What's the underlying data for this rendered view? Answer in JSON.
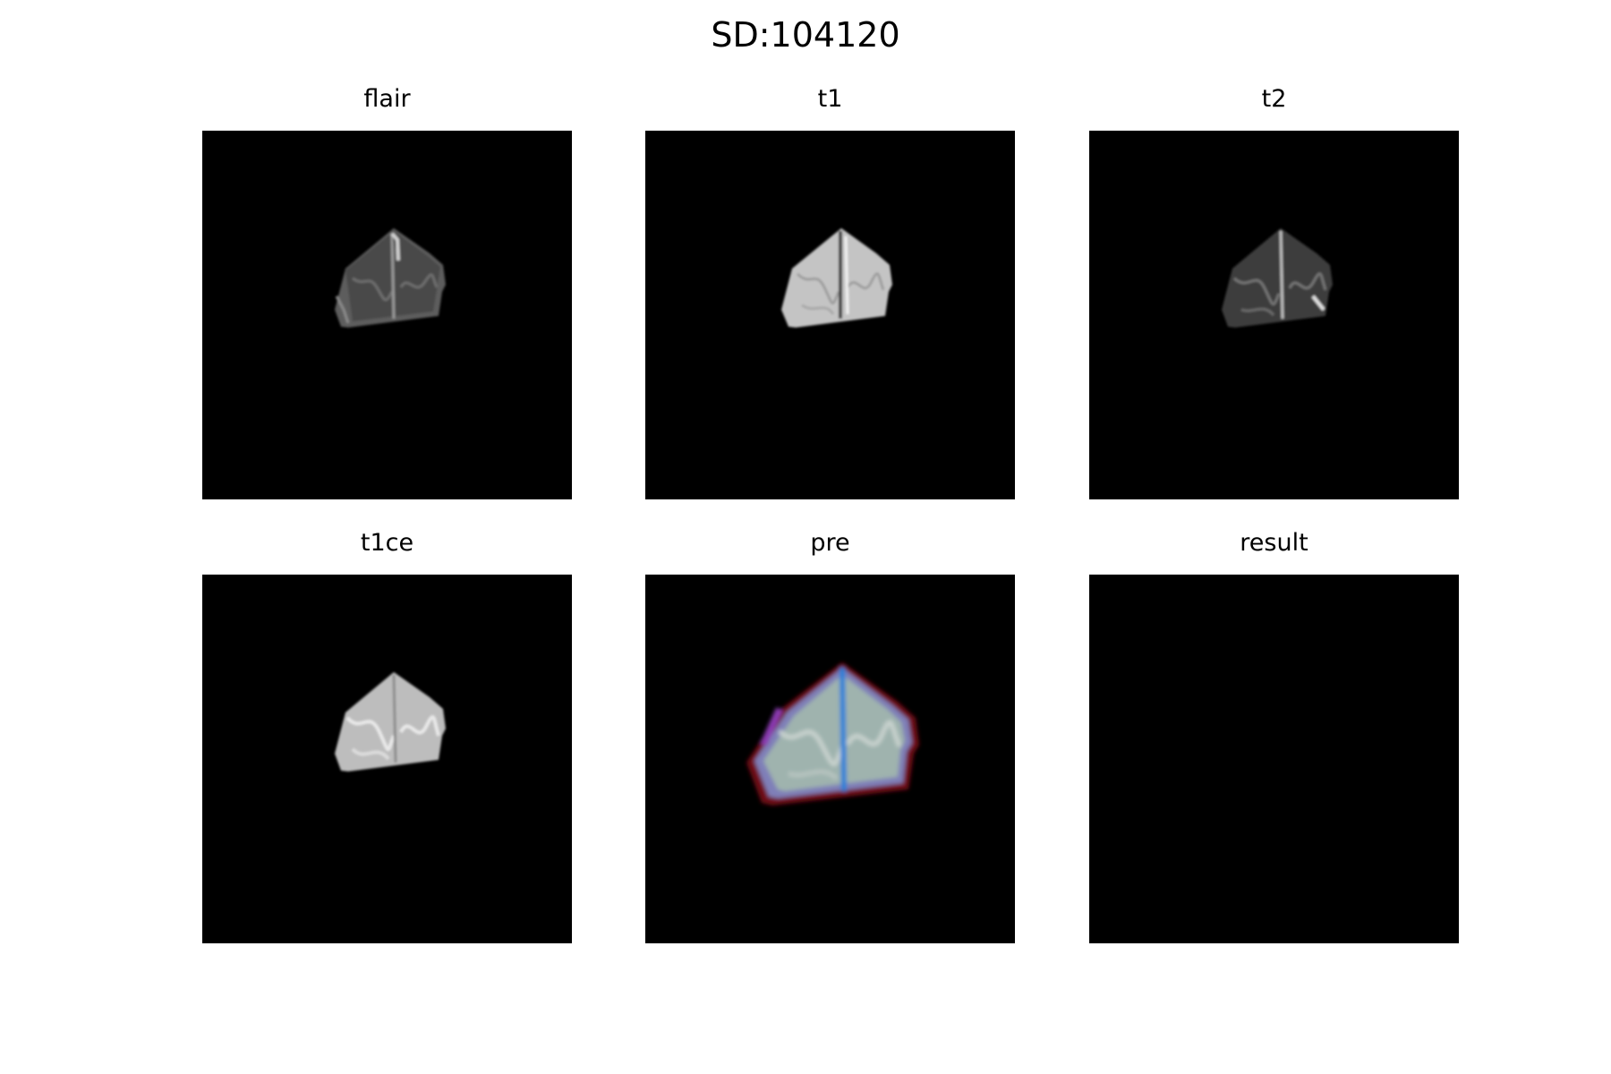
{
  "figure": {
    "title": "SD:104120",
    "background": "#ffffff"
  },
  "panels": [
    {
      "title": "flair",
      "image": "brain-mri-flair-slice"
    },
    {
      "title": "t1",
      "image": "brain-mri-t1-slice"
    },
    {
      "title": "t2",
      "image": "brain-mri-t2-slice"
    },
    {
      "title": "t1ce",
      "image": "brain-mri-t1ce-slice"
    },
    {
      "title": "pre",
      "image": "brain-mri-color-composite"
    },
    {
      "title": "result",
      "image": "empty-black-segmentation"
    }
  ],
  "colors": {
    "image_background": "#000000"
  }
}
